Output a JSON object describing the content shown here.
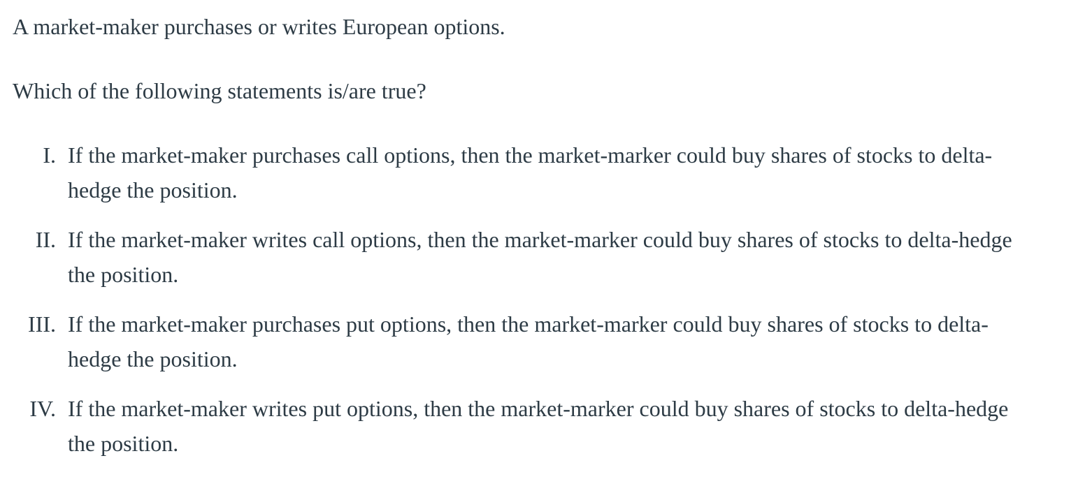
{
  "question": {
    "intro": "A market-maker purchases or writes European options.",
    "prompt": "Which of the following statements is/are true?",
    "statements": [
      {
        "numeral": "I.",
        "line1": "If the market-maker purchases call options, then the market-marker could buy shares of stocks to delta-",
        "line2": "hedge the position."
      },
      {
        "numeral": "II.",
        "line1": "If the market-maker writes call options, then the market-marker could buy shares of stocks to delta-hedge",
        "line2": "the position."
      },
      {
        "numeral": "III.",
        "line1": "If the market-maker purchases put options, then the market-marker could buy shares of stocks to delta-",
        "line2": "hedge the position."
      },
      {
        "numeral": "IV.",
        "line1": "If the market-maker writes put options, then the market-marker could buy shares of stocks to delta-hedge",
        "line2": "the position."
      }
    ]
  }
}
